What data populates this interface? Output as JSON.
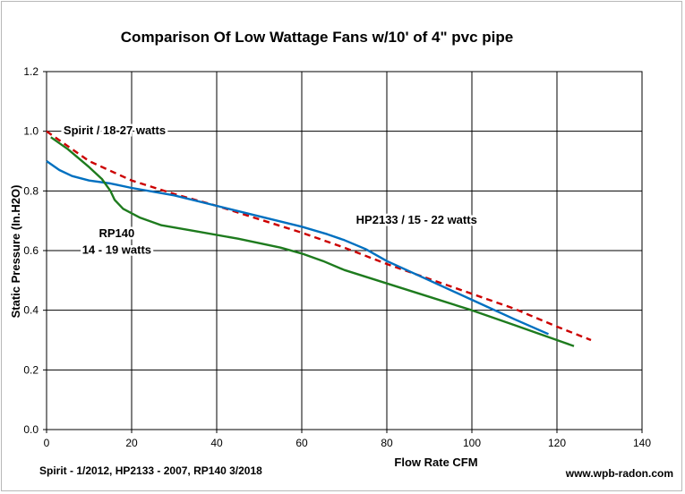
{
  "chart_data": {
    "type": "line",
    "title": "Comparison Of Low Wattage Fans  w/10' of 4\" pvc pipe",
    "xlabel": "Flow Rate  CFM",
    "ylabel": "Static Pressure  (In.H2O)",
    "xlim": [
      0,
      140
    ],
    "ylim": [
      0,
      1.2
    ],
    "xticks": [
      0,
      20,
      40,
      60,
      80,
      100,
      120,
      140
    ],
    "xtick_labels": [
      "0",
      "20",
      "40",
      "60",
      "80",
      "100",
      "120",
      "140"
    ],
    "yticks": [
      0,
      0.2,
      0.4,
      0.6,
      0.8,
      1.0,
      1.2
    ],
    "ytick_labels": [
      "0.0",
      "0.2",
      "0.4",
      "0.6",
      "0.8",
      "1.0",
      "1.2"
    ],
    "grid": true,
    "series": [
      {
        "name": "Spirit / 18-27 watts",
        "color": "#cc0000",
        "style": "dashed",
        "x": [
          0,
          10,
          20,
          30,
          40,
          50,
          60,
          70,
          80,
          90,
          100,
          110,
          120,
          128
        ],
        "y": [
          1.0,
          0.9,
          0.835,
          0.79,
          0.75,
          0.705,
          0.66,
          0.61,
          0.555,
          0.505,
          0.455,
          0.405,
          0.345,
          0.3
        ]
      },
      {
        "name": "HP2133 / 15 - 22 watts",
        "color": "#0070c0",
        "style": "solid",
        "x": [
          0,
          3,
          6,
          10,
          15,
          20,
          30,
          40,
          50,
          60,
          66,
          70,
          75,
          80,
          90,
          100,
          110,
          118
        ],
        "y": [
          0.9,
          0.87,
          0.85,
          0.835,
          0.825,
          0.81,
          0.785,
          0.75,
          0.715,
          0.68,
          0.655,
          0.635,
          0.605,
          0.565,
          0.5,
          0.435,
          0.37,
          0.32
        ]
      },
      {
        "name": "RP140 / 14 - 19 watts",
        "color": "#1e7b1e",
        "style": "solid",
        "x": [
          1,
          5,
          10,
          13,
          15,
          16,
          18,
          22,
          27,
          35,
          45,
          55,
          60,
          65,
          70,
          80,
          90,
          100,
          110,
          124
        ],
        "y": [
          0.98,
          0.94,
          0.88,
          0.84,
          0.8,
          0.77,
          0.74,
          0.71,
          0.685,
          0.665,
          0.64,
          0.61,
          0.59,
          0.565,
          0.535,
          0.49,
          0.445,
          0.4,
          0.35,
          0.28
        ]
      }
    ],
    "annotations": [
      {
        "text": "Spirit  / 18-27 watts",
        "x": 16,
        "y": 0.99
      },
      {
        "text": "HP2133 / 15 - 22 watts",
        "x": 87,
        "y": 0.69
      },
      {
        "text": "RP140",
        "x": 16.5,
        "y": 0.645
      },
      {
        "text": "14 - 19 watts",
        "x": 16.5,
        "y": 0.59
      }
    ]
  },
  "footer": {
    "dates": "Spirit - 1/2012,   HP2133 - 2007,   RP140 3/2018",
    "website": "www.wpb-radon.com"
  }
}
